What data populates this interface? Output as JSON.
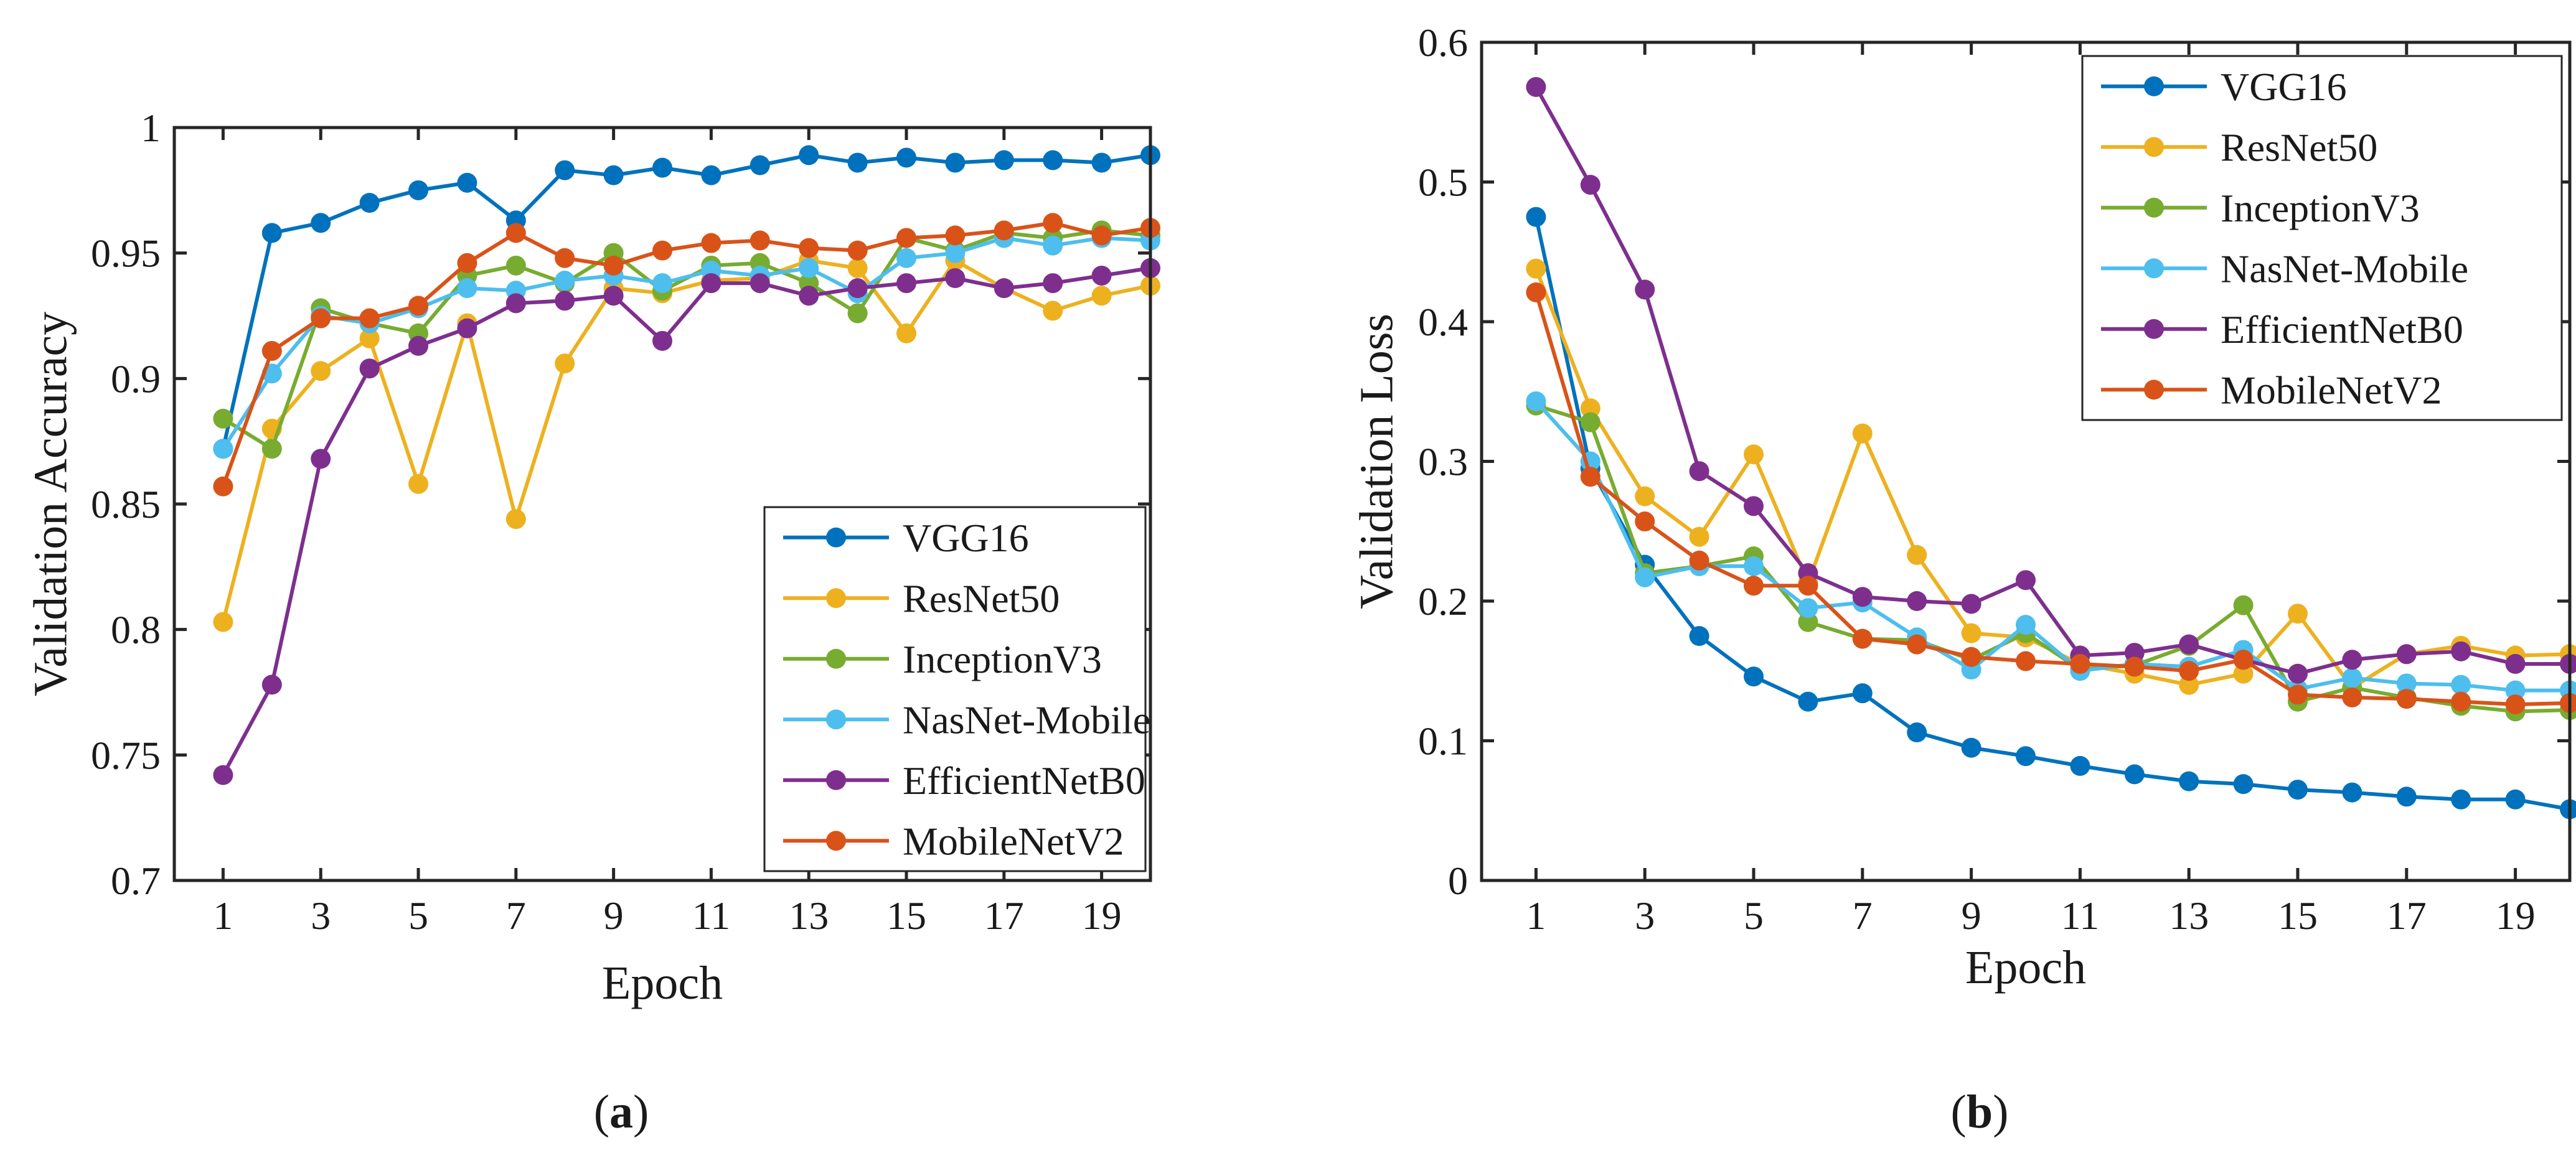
{
  "colors": {
    "VGG16": "#0072BD",
    "ResNet50": "#EDB120",
    "InceptionV3": "#77AC30",
    "NasNet-Mobile": "#4DBEEE",
    "EfficientNetB0": "#7E2F8E",
    "MobileNetV2": "#D95319"
  },
  "chart_data": [
    {
      "type": "line",
      "panel": "a",
      "caption_letter": "a",
      "xlabel": "Epoch",
      "ylabel": "Validation Accuracy",
      "xlim": [
        0,
        20
      ],
      "ylim": [
        0.7,
        1.0
      ],
      "xticks": [
        1,
        3,
        5,
        7,
        9,
        11,
        13,
        15,
        17,
        19
      ],
      "yticks": [
        0.7,
        0.75,
        0.8,
        0.85,
        0.9,
        0.95,
        1.0
      ],
      "ytick_labels": [
        "0.7",
        "0.75",
        "0.8",
        "0.85",
        "0.9",
        "0.95",
        "1"
      ],
      "legend_position": "bottom-right",
      "x": [
        1,
        2,
        3,
        4,
        5,
        6,
        7,
        8,
        9,
        10,
        11,
        12,
        13,
        14,
        15,
        16,
        17,
        18,
        19,
        20
      ],
      "series": [
        {
          "name": "VGG16",
          "values": [
            0.872,
            0.958,
            0.962,
            0.97,
            0.975,
            0.978,
            0.963,
            0.983,
            0.981,
            0.984,
            0.981,
            0.985,
            0.989,
            0.986,
            0.988,
            0.986,
            0.987,
            0.987,
            0.986,
            0.989
          ]
        },
        {
          "name": "ResNet50",
          "values": [
            0.803,
            0.88,
            0.903,
            0.916,
            0.858,
            0.922,
            0.844,
            0.906,
            0.936,
            0.934,
            0.939,
            0.94,
            0.947,
            0.944,
            0.918,
            0.947,
            0.936,
            0.927,
            0.933,
            0.937
          ]
        },
        {
          "name": "InceptionV3",
          "values": [
            0.884,
            0.872,
            0.928,
            0.922,
            0.918,
            0.941,
            0.945,
            0.938,
            0.95,
            0.935,
            0.945,
            0.946,
            0.938,
            0.926,
            0.956,
            0.951,
            0.958,
            0.956,
            0.959,
            0.957
          ]
        },
        {
          "name": "NasNet-Mobile",
          "values": [
            0.872,
            0.902,
            0.925,
            0.922,
            0.928,
            0.936,
            0.935,
            0.939,
            0.941,
            0.938,
            0.943,
            0.941,
            0.944,
            0.934,
            0.948,
            0.95,
            0.956,
            0.953,
            0.956,
            0.955
          ]
        },
        {
          "name": "EfficientNetB0",
          "values": [
            0.742,
            0.778,
            0.868,
            0.904,
            0.913,
            0.92,
            0.93,
            0.931,
            0.933,
            0.915,
            0.938,
            0.938,
            0.933,
            0.936,
            0.938,
            0.94,
            0.936,
            0.938,
            0.941,
            0.944
          ]
        },
        {
          "name": "MobileNetV2",
          "values": [
            0.857,
            0.911,
            0.924,
            0.924,
            0.929,
            0.946,
            0.958,
            0.948,
            0.945,
            0.951,
            0.954,
            0.955,
            0.952,
            0.951,
            0.956,
            0.957,
            0.959,
            0.962,
            0.957,
            0.96
          ]
        }
      ]
    },
    {
      "type": "line",
      "panel": "b",
      "caption_letter": "b",
      "xlabel": "Epoch",
      "ylabel": "Validation Loss",
      "xlim": [
        0,
        20
      ],
      "ylim": [
        0,
        0.6
      ],
      "xticks": [
        1,
        3,
        5,
        7,
        9,
        11,
        13,
        15,
        17,
        19
      ],
      "yticks": [
        0,
        0.1,
        0.2,
        0.3,
        0.4,
        0.5,
        0.6
      ],
      "ytick_labels": [
        "0",
        "0.1",
        "0.2",
        "0.3",
        "0.4",
        "0.5",
        "0.6"
      ],
      "legend_position": "top-right",
      "x": [
        1,
        2,
        3,
        4,
        5,
        6,
        7,
        8,
        9,
        10,
        11,
        12,
        13,
        14,
        15,
        16,
        17,
        18,
        19,
        20
      ],
      "series": [
        {
          "name": "VGG16",
          "values": [
            0.475,
            0.295,
            0.226,
            0.175,
            0.146,
            0.128,
            0.134,
            0.106,
            0.095,
            0.089,
            0.082,
            0.076,
            0.071,
            0.069,
            0.065,
            0.063,
            0.06,
            0.058,
            0.058,
            0.051
          ]
        },
        {
          "name": "ResNet50",
          "values": [
            0.438,
            0.338,
            0.275,
            0.246,
            0.305,
            0.213,
            0.32,
            0.233,
            0.177,
            0.174,
            0.155,
            0.148,
            0.14,
            0.148,
            0.191,
            0.138,
            0.162,
            0.168,
            0.161,
            0.162
          ]
        },
        {
          "name": "InceptionV3",
          "values": [
            0.34,
            0.328,
            0.22,
            0.225,
            0.232,
            0.185,
            0.173,
            0.172,
            0.158,
            0.177,
            0.151,
            0.154,
            0.168,
            0.197,
            0.128,
            0.138,
            0.131,
            0.125,
            0.121,
            0.122
          ]
        },
        {
          "name": "NasNet-Mobile",
          "values": [
            0.343,
            0.3,
            0.217,
            0.225,
            0.225,
            0.195,
            0.199,
            0.174,
            0.151,
            0.183,
            0.15,
            0.155,
            0.153,
            0.165,
            0.137,
            0.145,
            0.141,
            0.14,
            0.136,
            0.136
          ]
        },
        {
          "name": "EfficientNetB0",
          "values": [
            0.568,
            0.498,
            0.423,
            0.293,
            0.268,
            0.22,
            0.203,
            0.2,
            0.198,
            0.215,
            0.161,
            0.163,
            0.169,
            0.158,
            0.148,
            0.158,
            0.162,
            0.164,
            0.155,
            0.155
          ]
        },
        {
          "name": "MobileNetV2",
          "values": [
            0.421,
            0.289,
            0.257,
            0.229,
            0.211,
            0.211,
            0.173,
            0.169,
            0.16,
            0.157,
            0.155,
            0.153,
            0.15,
            0.158,
            0.133,
            0.131,
            0.13,
            0.128,
            0.126,
            0.127
          ]
        }
      ]
    }
  ]
}
